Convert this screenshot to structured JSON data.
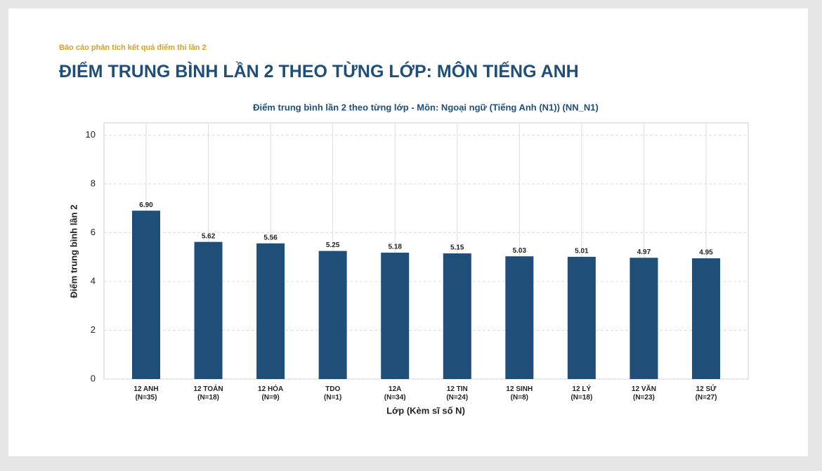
{
  "header": {
    "kicker": "Báo cáo phân tích kết quả điểm thi lần 2",
    "title": "ĐIỂM TRUNG BÌNH LẦN 2 THEO TỪNG LỚP: MÔN TIẾNG ANH"
  },
  "chart_data": {
    "type": "bar",
    "title": "Điểm trung bình lần 2 theo từng lớp - Môn: Ngoại ngữ (Tiếng Anh (N1)) (NN_N1)",
    "x_label": "Lớp (Kèm sĩ số N)",
    "y_label": "Điểm trung bình lần 2",
    "categories": [
      "12 ANH\n(N=35)",
      "12 TOÁN\n(N=18)",
      "12 HÓA\n(N=9)",
      "TDO\n(N=1)",
      "12A\n(N=34)",
      "12 TIN\n(N=24)",
      "12 SINH\n(N=8)",
      "12 LÝ\n(N=18)",
      "12 VĂN\n(N=23)",
      "12 SỬ\n(N=27)"
    ],
    "values": [
      6.9,
      5.62,
      5.56,
      5.25,
      5.18,
      5.15,
      5.03,
      5.01,
      4.97,
      4.95
    ],
    "value_labels": [
      "6.90",
      "5.62",
      "5.56",
      "5.25",
      "5.18",
      "5.15",
      "5.03",
      "5.01",
      "4.97",
      "4.95"
    ],
    "color": "#1f4e79",
    "ylim": [
      0,
      10.5
    ],
    "yticks": [
      0,
      2,
      4,
      6,
      8,
      10
    ],
    "grid": true
  }
}
